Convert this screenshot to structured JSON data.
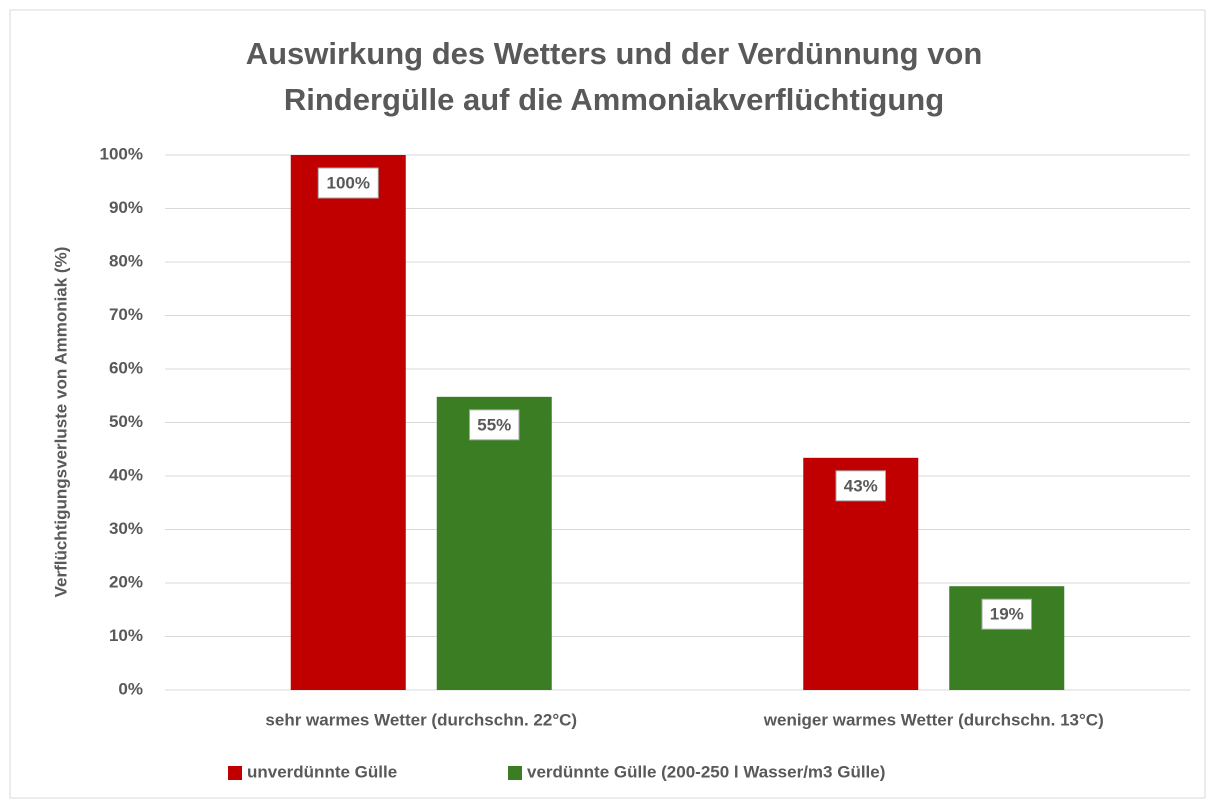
{
  "chart_data": {
    "type": "bar",
    "title": [
      "Auswirkung des Wetters und der Verdünnung von",
      "Rindergülle auf die Ammoniakverflüchtigung"
    ],
    "y_label": "Verflüchtigungsverluste von Ammoniak (%)",
    "categories": [
      "sehr warmes Wetter (durchschn. 22°C)",
      "weniger warmes Wetter (durchschn. 13°C)"
    ],
    "series": [
      {
        "name": "unverdünnte Gülle",
        "color": "#c00000",
        "values": [
          100,
          43.4
        ],
        "value_labels": [
          "100%",
          "43%"
        ]
      },
      {
        "name": "verdünnte Gülle (200-250 l Wasser/m3 Gülle)",
        "color": "#3a7d22",
        "values": [
          54.8,
          19.4
        ],
        "value_labels": [
          "55%",
          "19%"
        ]
      }
    ],
    "ylim": [
      0,
      100
    ],
    "yticks": [
      {
        "value": 0,
        "label": "0%"
      },
      {
        "value": 10,
        "label": "10%"
      },
      {
        "value": 20,
        "label": "20%"
      },
      {
        "value": 30,
        "label": "30%"
      },
      {
        "value": 40,
        "label": "40%"
      },
      {
        "value": 50,
        "label": "50%"
      },
      {
        "value": 60,
        "label": "60%"
      },
      {
        "value": 70,
        "label": "70%"
      },
      {
        "value": 80,
        "label": "80%"
      },
      {
        "value": 90,
        "label": "90%"
      },
      {
        "value": 100,
        "label": "100%"
      }
    ],
    "grid": true,
    "legend": "bottom"
  }
}
